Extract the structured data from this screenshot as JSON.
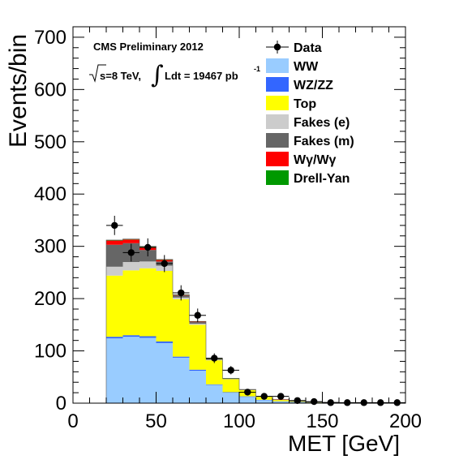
{
  "chart_data": {
    "type": "bar",
    "stacked": true,
    "ylabel": "Events/bin",
    "xlabel": "MET [GeV]",
    "xlim": [
      0,
      200
    ],
    "ylim": [
      0,
      720
    ],
    "bin_width": 10,
    "x_tick_labels": [
      "0",
      "50",
      "100",
      "150",
      "200"
    ],
    "y_tick_labels": [
      "0",
      "100",
      "200",
      "300",
      "400",
      "500",
      "600",
      "700"
    ],
    "annotations": {
      "line1": "CMS Preliminary 2012",
      "sqrt_s": "s=8 TeV,",
      "lumi": "Ldt = 19467 pb",
      "lumi_exp": "-1"
    },
    "bin_edges": [
      20,
      30,
      40,
      50,
      60,
      70,
      80,
      90,
      100,
      110,
      120,
      130,
      140,
      150,
      160,
      170,
      180,
      190,
      200
    ],
    "series": [
      {
        "name": "WW",
        "color": "#99ccff",
        "values": [
          124,
          127,
          125,
          115,
          87,
          62,
          35,
          20,
          12,
          6,
          3,
          2,
          1,
          1,
          0.5,
          0.5,
          0.3,
          0.3
        ]
      },
      {
        "name": "WZ/ZZ",
        "color": "#3366ff",
        "values": [
          3,
          3,
          3,
          3,
          2,
          2,
          1,
          1,
          1,
          0.5,
          0.5,
          0.3,
          0.2,
          0.2,
          0.1,
          0.1,
          0.1,
          0.1
        ]
      },
      {
        "name": "Top",
        "color": "#ffff00",
        "values": [
          117,
          124,
          130,
          135,
          110,
          86,
          46,
          25,
          12,
          6,
          3,
          2,
          1,
          0.5,
          0.5,
          0.3,
          0.2,
          0.2
        ]
      },
      {
        "name": "Fakes (e)",
        "color": "#cccccc",
        "values": [
          17,
          16,
          13,
          10,
          3,
          2,
          1,
          0.5,
          0.5,
          0.3,
          0.2,
          0.1,
          0.1,
          0.1,
          0,
          0,
          0,
          0
        ]
      },
      {
        "name": "Fakes (m)",
        "color": "#666666",
        "values": [
          42,
          36,
          22,
          8,
          4,
          3,
          1,
          0.5,
          0.5,
          0.3,
          0.2,
          0.1,
          0.1,
          0.1,
          0,
          0,
          0,
          0
        ]
      },
      {
        "name": "Wγ/Wγ",
        "color": "#ff0000",
        "values": [
          8,
          7,
          6,
          3,
          1,
          1,
          0.5,
          0.3,
          0.2,
          0.1,
          0.1,
          0,
          0,
          0,
          0,
          0,
          0,
          0
        ]
      },
      {
        "name": "Drell-Yan",
        "color": "#009900",
        "values": [
          1,
          1,
          1,
          1,
          0.5,
          0.5,
          0.3,
          0.2,
          0.1,
          0.1,
          0,
          0,
          0,
          0,
          0,
          0,
          0,
          0
        ]
      }
    ],
    "data": {
      "name": "Data",
      "x": [
        25,
        35,
        45,
        55,
        65,
        75,
        85,
        95,
        105,
        115,
        125,
        135,
        145,
        155,
        165,
        175,
        185,
        195
      ],
      "y": [
        340,
        288,
        298,
        267,
        211,
        168,
        86,
        63,
        21,
        13,
        13,
        5,
        3,
        1,
        1,
        1,
        1,
        1
      ]
    },
    "legend": {
      "placement": "top-right",
      "entries": [
        "Data",
        "WW",
        "WZ/ZZ",
        "Top",
        "Fakes (e)",
        "Fakes (m)",
        "Wγ/Wγ",
        "Drell-Yan"
      ]
    },
    "grid": false
  }
}
